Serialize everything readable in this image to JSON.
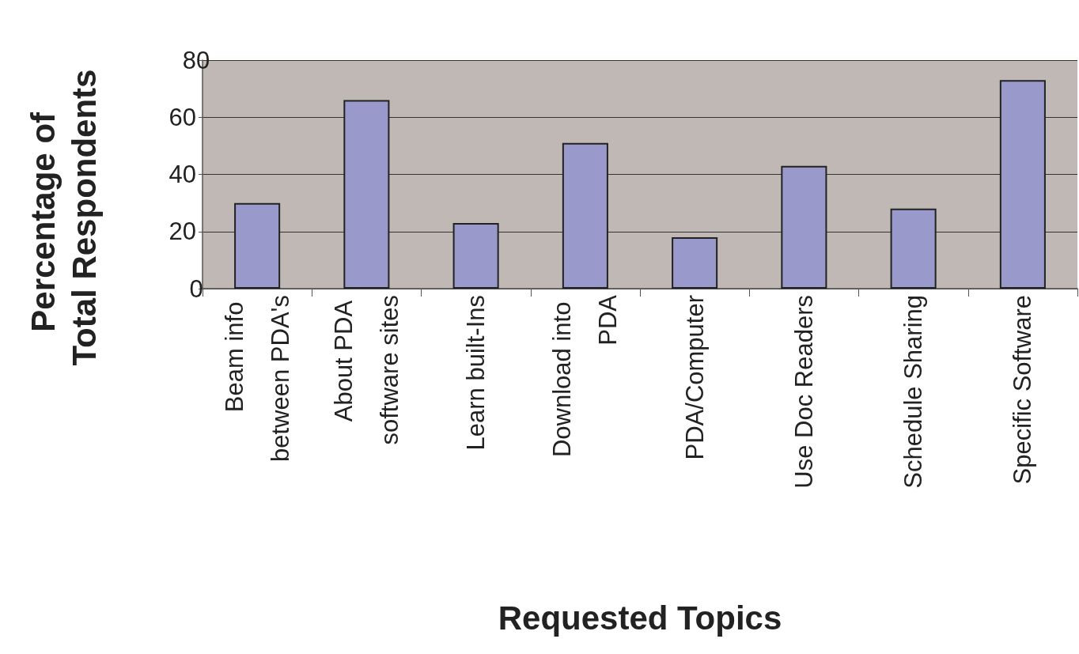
{
  "chart_data": {
    "type": "bar",
    "xlabel": "Requested Topics",
    "ylabel": "Percentage of Total Respondents",
    "categories": [
      "Beam info between PDA's",
      "About PDA software sites",
      "Learn built-Ins",
      "Download into PDA",
      "PDA/Computer",
      "Use Doc Readers",
      "Schedule Sharing",
      "Specific Software"
    ],
    "values": [
      30,
      66,
      23,
      51,
      18,
      43,
      28,
      73
    ],
    "color": "#9999cc",
    "ylim": [
      0,
      80
    ],
    "yticks": [
      0,
      20,
      40,
      60,
      80
    ],
    "grid": "y"
  }
}
